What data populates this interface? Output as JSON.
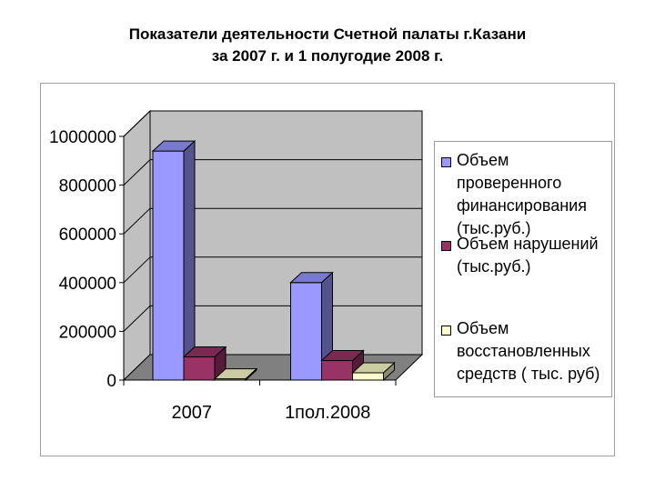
{
  "header": {
    "title_line1": "Показатели деятельности Счетной палаты г.Казани",
    "title_line2": "за 2007 г. и 1 полугодие 2008 г."
  },
  "chart_data": {
    "type": "bar",
    "three_d": true,
    "title": "Показатели деятельности Счетной палаты г.Казани за 2007 г. и 1 полугодие 2008 г.",
    "categories": [
      "2007",
      "1пол.2008"
    ],
    "series": [
      {
        "name": "Объем проверенного финансирования (тыс.руб.)",
        "values": [
          940000,
          400000
        ],
        "color": "#9999ff"
      },
      {
        "name": "Объем нарушений (тыс.руб.)",
        "values": [
          95000,
          80000
        ],
        "color": "#993366"
      },
      {
        "name": "Объем восстановленных средств ( тыс. руб)",
        "values": [
          5000,
          30000
        ],
        "color": "#ffffcc"
      }
    ],
    "ylim": [
      0,
      1000000
    ],
    "yticks": [
      0,
      200000,
      400000,
      600000,
      800000,
      1000000
    ],
    "ytick_labels": [
      "0",
      "200000",
      "400000",
      "600000",
      "800000",
      "1000000"
    ],
    "grid": true,
    "wall_color": "#c0c0c0",
    "floor_color": "#808080",
    "legend_position": "right",
    "legend_lines": [
      [
        "Объем проверенного",
        "финансирования",
        "(тыс.руб.)"
      ],
      [
        "Объем нарушений",
        "(тыс.руб.)"
      ],
      [
        "Объем",
        "восстановленных",
        "средств ( тыс. руб)"
      ]
    ]
  }
}
